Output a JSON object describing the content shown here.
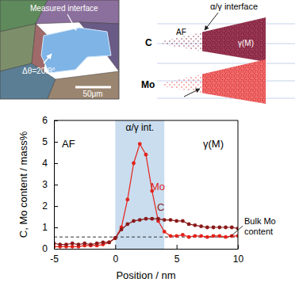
{
  "chart_data": {
    "type": "line",
    "x_label": "Position / nm",
    "y_label": "C, Mo content / mass%",
    "x": [
      -5,
      -4.5,
      -4,
      -3.5,
      -3,
      -2.5,
      -2,
      -1.5,
      -1,
      -0.5,
      0,
      0.5,
      1,
      1.5,
      2,
      2.5,
      3,
      3.5,
      4,
      4.5,
      5,
      5.5,
      6,
      6.5,
      7,
      7.5,
      8,
      8.5,
      9,
      9.5,
      10
    ],
    "series": [
      {
        "name": "Mo",
        "color": "#e3231c",
        "marker": "circle",
        "line_style": "solid",
        "values": [
          0.1,
          0.1,
          0.1,
          0.1,
          0.1,
          0.15,
          0.15,
          0.15,
          0.2,
          0.3,
          0.5,
          1.0,
          2.3,
          4.0,
          4.9,
          4.4,
          2.7,
          1.3,
          0.8,
          0.6,
          0.6,
          0.65,
          0.55,
          0.6,
          0.6,
          0.55,
          0.6,
          0.6,
          0.55,
          0.6,
          0.6
        ]
      },
      {
        "name": "C",
        "color": "#8b1a1a",
        "marker": "circle",
        "line_style": "solid",
        "values": [
          0.25,
          0.2,
          0.2,
          0.25,
          0.2,
          0.25,
          0.2,
          0.25,
          0.3,
          0.3,
          0.5,
          0.9,
          1.15,
          1.3,
          1.35,
          1.4,
          1.4,
          1.4,
          1.35,
          1.35,
          1.3,
          1.3,
          1.15,
          1.1,
          1.05,
          1.0,
          1.0,
          1.0,
          1.0,
          1.0,
          0.95
        ]
      }
    ],
    "xlim": [
      -5,
      10
    ],
    "xticks": [
      -5,
      0,
      5,
      10
    ],
    "ylim": [
      0,
      6
    ],
    "yticks": [
      0,
      1,
      2,
      3,
      4,
      5,
      6
    ],
    "grid": false,
    "shaded_region": {
      "x": [
        0,
        4
      ],
      "label": "α/γ int.",
      "color": "#c9ddef"
    },
    "reference_line": {
      "y": 0.55,
      "label": "Bulk Mo content",
      "line_style": "dashed"
    },
    "region_labels": [
      "AF",
      "γ(M)"
    ]
  },
  "micrograph": {
    "labels": [
      "Measured interface",
      "Δθ=20.9°"
    ],
    "scale_bar": "50μm"
  },
  "atom_map": {
    "title": "α/γ interface",
    "panels": [
      "C",
      "Mo"
    ],
    "regions": [
      "AF",
      "γ(M)"
    ]
  }
}
